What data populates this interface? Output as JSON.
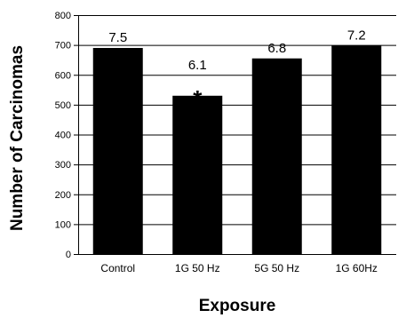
{
  "chart_data": {
    "type": "bar",
    "categories": [
      "Control",
      "1G 50 Hz",
      "5G 50 Hz",
      "1G 60Hz"
    ],
    "values": [
      690,
      530,
      655,
      698
    ],
    "data_labels": [
      "7.5",
      "6.1",
      "6.8",
      "7.2"
    ],
    "annotations": [
      {
        "category": "1G 50 Hz",
        "text": "*"
      }
    ],
    "title": "",
    "xlabel": "Exposure",
    "ylabel": "Number of Carcinomas",
    "ylim": [
      0,
      800
    ],
    "yticks": [
      0,
      100,
      200,
      300,
      400,
      500,
      600,
      700,
      800
    ],
    "grid": true,
    "bar_color": "#000000",
    "grid_color": "#000000"
  }
}
